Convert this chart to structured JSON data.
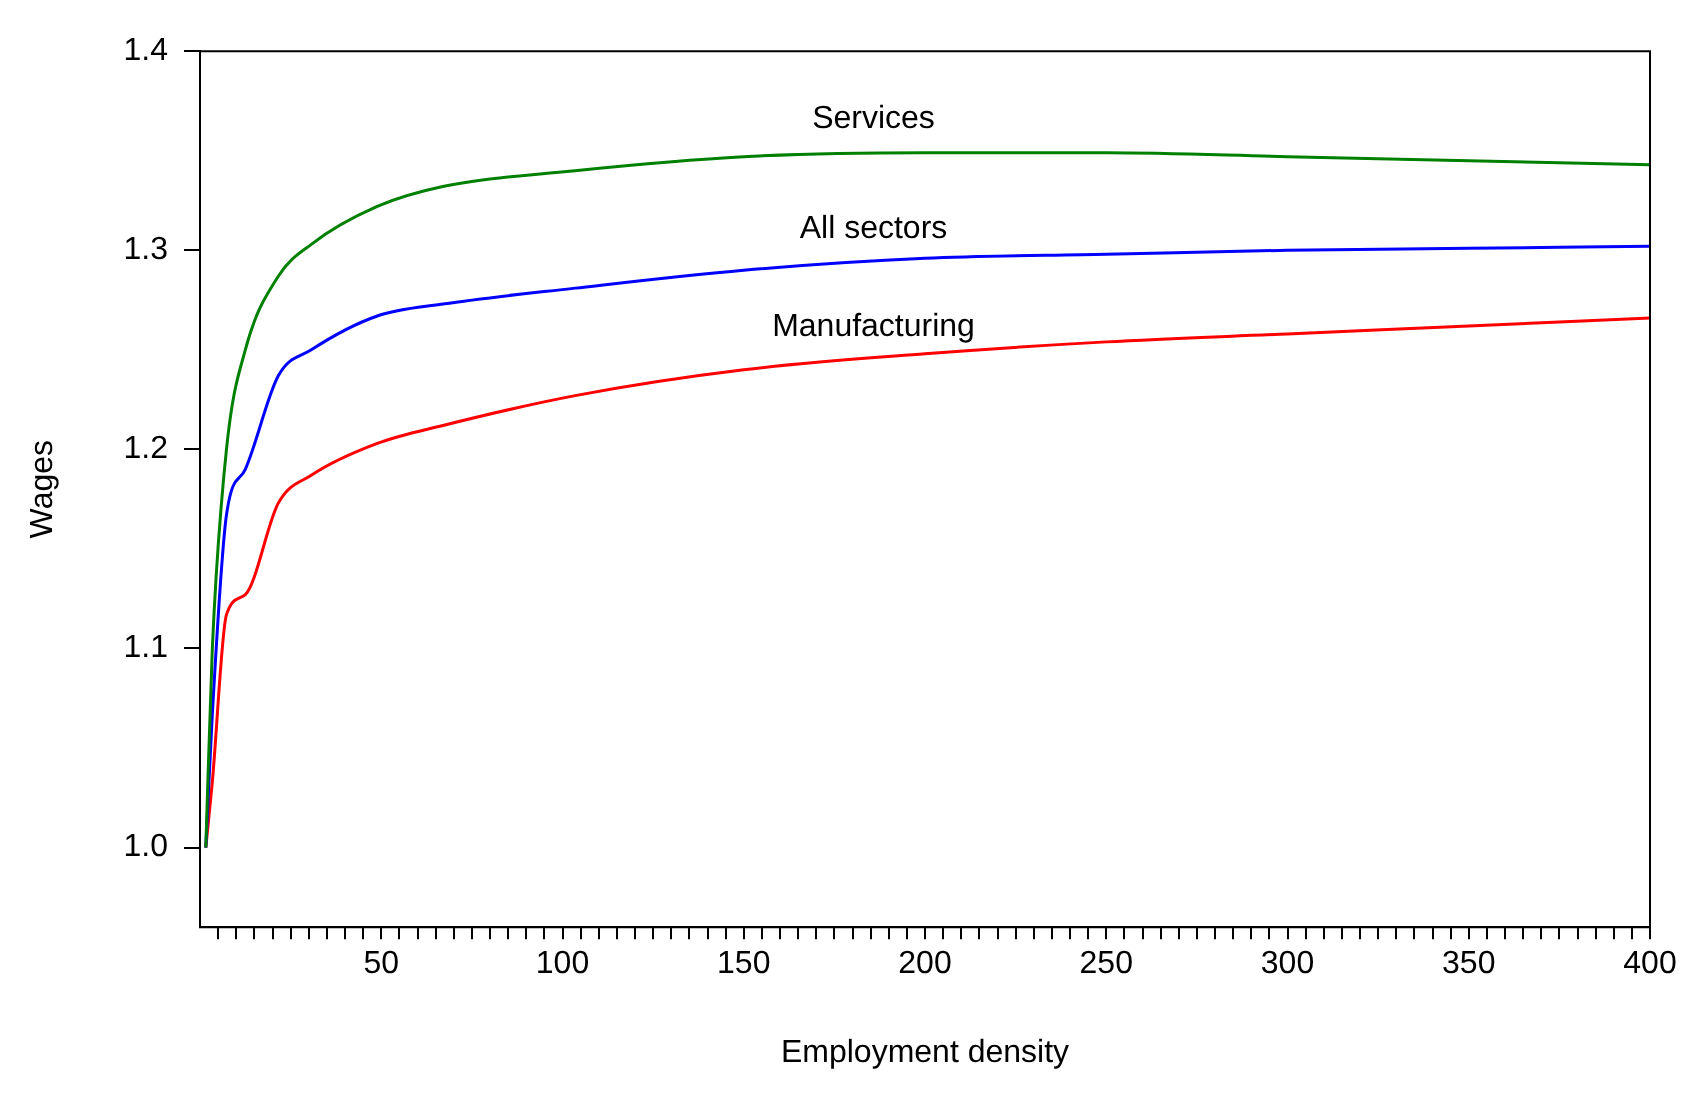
{
  "chart_data": {
    "type": "line",
    "xlabel": "Employment density",
    "ylabel": "Wages",
    "xlim": [
      0,
      400
    ],
    "ylim": [
      0.96,
      1.4
    ],
    "xticks": [
      {
        "value": 5,
        "label": null
      },
      {
        "value": 10,
        "label": null
      },
      {
        "value": 15,
        "label": null
      },
      {
        "value": 20,
        "label": null
      },
      {
        "value": 25,
        "label": null
      },
      {
        "value": 30,
        "label": null
      },
      {
        "value": 35,
        "label": null
      },
      {
        "value": 40,
        "label": null
      },
      {
        "value": 45,
        "label": null
      },
      50,
      {
        "value": 55,
        "label": null
      },
      {
        "value": 60,
        "label": null
      },
      {
        "value": 65,
        "label": null
      },
      {
        "value": 70,
        "label": null
      },
      {
        "value": 75,
        "label": null
      },
      {
        "value": 80,
        "label": null
      },
      {
        "value": 85,
        "label": null
      },
      {
        "value": 90,
        "label": null
      },
      {
        "value": 95,
        "label": null
      },
      100,
      {
        "value": 105,
        "label": null
      },
      {
        "value": 110,
        "label": null
      },
      {
        "value": 115,
        "label": null
      },
      {
        "value": 120,
        "label": null
      },
      {
        "value": 125,
        "label": null
      },
      {
        "value": 130,
        "label": null
      },
      {
        "value": 135,
        "label": null
      },
      {
        "value": 140,
        "label": null
      },
      {
        "value": 145,
        "label": null
      },
      150,
      {
        "value": 155,
        "label": null
      },
      {
        "value": 160,
        "label": null
      },
      {
        "value": 165,
        "label": null
      },
      {
        "value": 170,
        "label": null
      },
      {
        "value": 175,
        "label": null
      },
      {
        "value": 180,
        "label": null
      },
      {
        "value": 185,
        "label": null
      },
      {
        "value": 190,
        "label": null
      },
      {
        "value": 195,
        "label": null
      },
      200,
      {
        "value": 205,
        "label": null
      },
      {
        "value": 210,
        "label": null
      },
      {
        "value": 215,
        "label": null
      },
      {
        "value": 220,
        "label": null
      },
      {
        "value": 225,
        "label": null
      },
      {
        "value": 230,
        "label": null
      },
      {
        "value": 235,
        "label": null
      },
      {
        "value": 240,
        "label": null
      },
      {
        "value": 245,
        "label": null
      },
      250,
      {
        "value": 255,
        "label": null
      },
      {
        "value": 260,
        "label": null
      },
      {
        "value": 265,
        "label": null
      },
      {
        "value": 270,
        "label": null
      },
      {
        "value": 275,
        "label": null
      },
      {
        "value": 280,
        "label": null
      },
      {
        "value": 285,
        "label": null
      },
      {
        "value": 290,
        "label": null
      },
      {
        "value": 295,
        "label": null
      },
      300,
      {
        "value": 305,
        "label": null
      },
      {
        "value": 310,
        "label": null
      },
      {
        "value": 315,
        "label": null
      },
      {
        "value": 320,
        "label": null
      },
      {
        "value": 325,
        "label": null
      },
      {
        "value": 330,
        "label": null
      },
      {
        "value": 335,
        "label": null
      },
      {
        "value": 340,
        "label": null
      },
      {
        "value": 345,
        "label": null
      },
      350,
      {
        "value": 355,
        "label": null
      },
      {
        "value": 360,
        "label": null
      },
      {
        "value": 365,
        "label": null
      },
      {
        "value": 370,
        "label": null
      },
      {
        "value": 375,
        "label": null
      },
      {
        "value": 380,
        "label": null
      },
      {
        "value": 385,
        "label": null
      },
      {
        "value": 390,
        "label": null
      },
      {
        "value": 395,
        "label": null
      },
      400
    ],
    "yticks": [
      {
        "value": 1.0,
        "label": "1.0"
      },
      {
        "value": 1.1,
        "label": "1.1"
      },
      {
        "value": 1.2,
        "label": "1.2"
      },
      {
        "value": 1.3,
        "label": "1.3"
      },
      {
        "value": 1.4,
        "label": "1.4"
      }
    ],
    "grid": false,
    "legend": false,
    "marker": "none",
    "line_style": "solid",
    "series": [
      {
        "name": "Services",
        "color": "#008000",
        "x": [
          1.6,
          3.4,
          7.3,
          12.5,
          21.6,
          30.7,
          48.9,
          67,
          103.5,
          150,
          200,
          250,
          300,
          350,
          400
        ],
        "values": [
          1.0,
          1.1,
          1.2,
          1.25,
          1.287,
          1.303,
          1.322,
          1.332,
          1.34,
          1.347,
          1.349,
          1.349,
          1.347,
          1.345,
          1.343
        ]
      },
      {
        "name": "All sectors",
        "color": "#0000ff",
        "x": [
          1.6,
          3.4,
          7.3,
          12.5,
          21.6,
          30.7,
          48.9,
          67,
          103.5,
          150,
          200,
          250,
          300,
          350,
          400
        ],
        "values": [
          1.0,
          1.067,
          1.167,
          1.19,
          1.237,
          1.25,
          1.267,
          1.273,
          1.281,
          1.29,
          1.296,
          1.298,
          1.3,
          1.301,
          1.302
        ]
      },
      {
        "name": "Manufacturing",
        "color": "#ff0000",
        "x": [
          1.6,
          3.4,
          7.3,
          12.5,
          21.6,
          30.7,
          48.9,
          67,
          103.5,
          150,
          200,
          250,
          300,
          350,
          400
        ],
        "values": [
          1.0,
          1.033,
          1.117,
          1.127,
          1.173,
          1.187,
          1.203,
          1.212,
          1.227,
          1.24,
          1.248,
          1.254,
          1.258,
          1.262,
          1.266
        ]
      }
    ]
  }
}
